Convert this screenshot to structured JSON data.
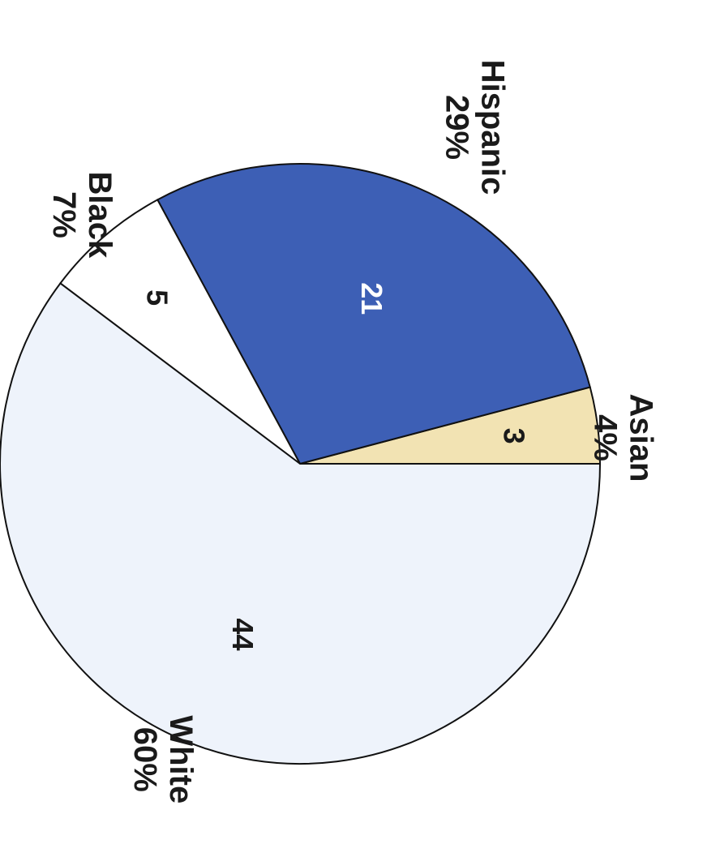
{
  "chart_data": {
    "type": "pie",
    "categories": [
      "Asian",
      "Hispanic",
      "Black",
      "White"
    ],
    "values": [
      3,
      21,
      5,
      44
    ],
    "value_labels": [
      "3",
      "21",
      "5",
      "44"
    ],
    "percent_labels": [
      "4%",
      "29%",
      "7%",
      "60%"
    ],
    "colors": [
      "#F2E3B3",
      "#3D5FB5",
      "#FFFFFF",
      "#EEF3FB"
    ],
    "orientation": "rotated 90° clockwise",
    "title": "",
    "legend": "none"
  }
}
